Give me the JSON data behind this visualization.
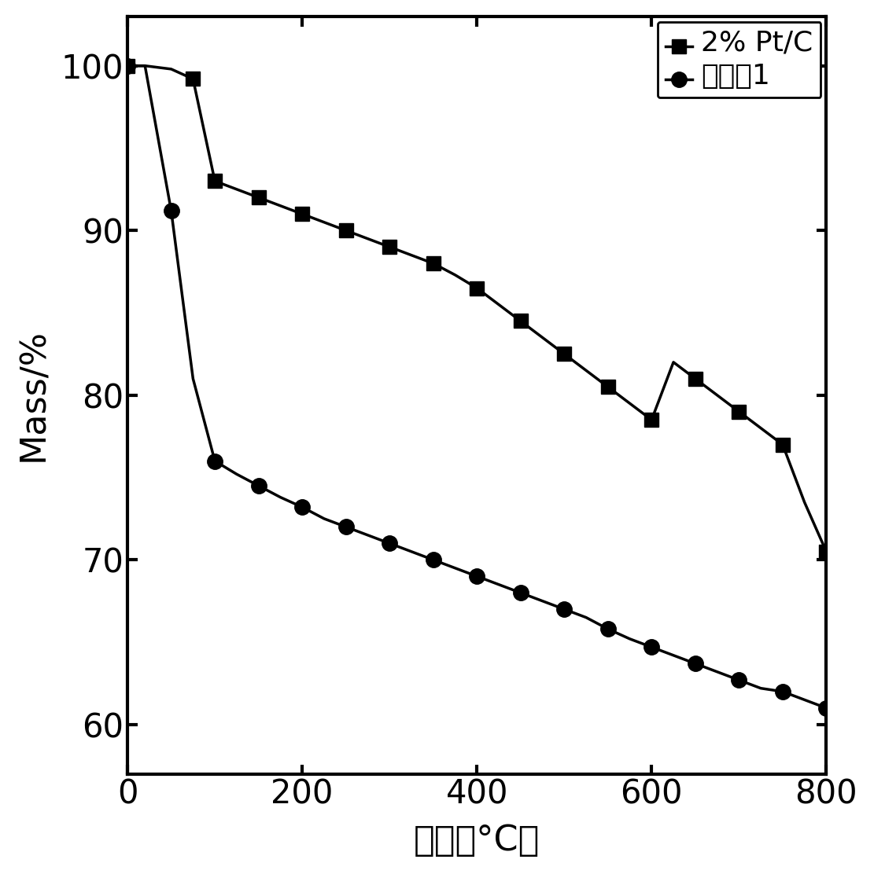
{
  "series1_label": "2% Pt/C",
  "series2_label": "实施例1",
  "xlabel": "温度（°C）",
  "ylabel": "Mass/%",
  "xlim": [
    0,
    800
  ],
  "ylim": [
    57,
    103
  ],
  "yticks": [
    60,
    70,
    80,
    90,
    100
  ],
  "xticks": [
    0,
    200,
    400,
    600,
    800
  ],
  "line_color": "#000000",
  "series1_x": [
    0,
    20,
    50,
    75,
    100,
    125,
    150,
    175,
    200,
    225,
    250,
    275,
    300,
    325,
    350,
    375,
    400,
    425,
    450,
    475,
    500,
    525,
    550,
    575,
    600,
    625,
    650,
    675,
    700,
    725,
    750,
    775,
    800
  ],
  "series1_y": [
    100,
    100,
    99.8,
    99.2,
    93.0,
    92.5,
    92.0,
    91.5,
    91.0,
    90.5,
    90.0,
    89.5,
    89.0,
    88.5,
    88.0,
    87.3,
    86.5,
    85.5,
    84.5,
    83.5,
    82.5,
    81.5,
    80.5,
    79.5,
    78.5,
    82.0,
    81.0,
    80.0,
    79.0,
    78.0,
    77.0,
    73.5,
    70.5
  ],
  "series2_x": [
    0,
    20,
    50,
    75,
    100,
    125,
    150,
    175,
    200,
    225,
    250,
    275,
    300,
    325,
    350,
    375,
    400,
    425,
    450,
    475,
    500,
    525,
    550,
    575,
    600,
    625,
    650,
    675,
    700,
    725,
    750,
    775,
    800
  ],
  "series2_y": [
    100,
    100,
    91.2,
    81.0,
    76.0,
    75.2,
    74.5,
    73.8,
    73.2,
    72.5,
    72.0,
    71.5,
    71.0,
    70.5,
    70.0,
    69.5,
    69.0,
    68.5,
    68.0,
    67.5,
    67.0,
    66.5,
    65.8,
    65.2,
    64.7,
    64.2,
    63.7,
    63.2,
    62.7,
    62.2,
    62.0,
    61.5,
    61.0
  ],
  "marker1_x": [
    0,
    75,
    100,
    150,
    200,
    250,
    300,
    350,
    400,
    450,
    500,
    550,
    600,
    650,
    700,
    750,
    800
  ],
  "marker1_y": [
    100,
    99.2,
    93.0,
    92.0,
    91.0,
    90.0,
    89.0,
    88.0,
    86.5,
    84.5,
    82.5,
    80.5,
    78.5,
    81.0,
    79.0,
    77.0,
    70.5
  ],
  "marker2_x": [
    0,
    50,
    100,
    150,
    200,
    250,
    300,
    350,
    400,
    450,
    500,
    550,
    600,
    650,
    700,
    750,
    800
  ],
  "marker2_y": [
    100,
    91.2,
    76.0,
    74.5,
    73.2,
    72.0,
    71.0,
    70.0,
    69.0,
    68.0,
    67.0,
    65.8,
    64.7,
    63.7,
    62.7,
    62.0,
    61.0
  ]
}
